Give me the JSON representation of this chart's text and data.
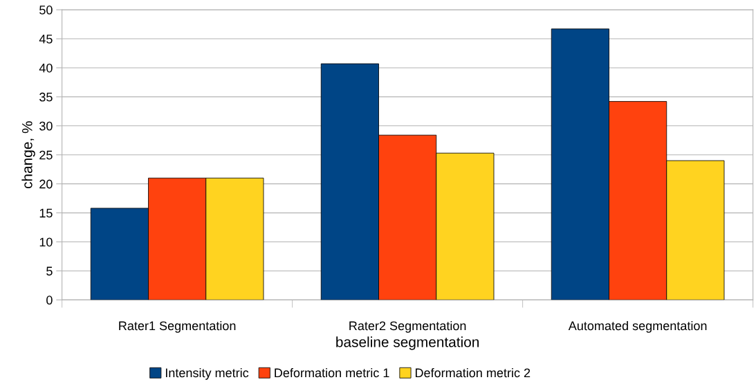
{
  "chart_data": {
    "type": "bar",
    "xlabel": "baseline segmentation",
    "ylabel": "change, %",
    "categories": [
      "Rater1 Segmentation",
      "Rater2 Segmentation",
      "Automated segmentation"
    ],
    "series": [
      {
        "name": "Intensity metric",
        "color": "#004586",
        "values": [
          15.8,
          40.7,
          46.7
        ]
      },
      {
        "name": "Deformation metric 1",
        "color": "#ff420e",
        "values": [
          21.0,
          28.4,
          34.2
        ]
      },
      {
        "name": "Deformation metric 2",
        "color": "#ffd320",
        "values": [
          21.0,
          25.3,
          24.0
        ]
      }
    ],
    "ylim": [
      0,
      50
    ],
    "yticks": [
      0,
      5,
      10,
      15,
      20,
      25,
      30,
      35,
      40,
      45,
      50
    ],
    "grid": "y",
    "legend": "bottom"
  }
}
